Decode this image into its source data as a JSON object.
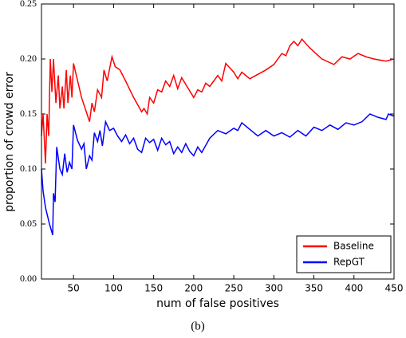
{
  "chart_data": {
    "type": "line",
    "xlabel": "num of false positives",
    "ylabel": "proportion of crowd error",
    "caption": "(b)",
    "xlim": [
      10,
      450
    ],
    "ylim": [
      0,
      0.25
    ],
    "xticks": [
      50,
      100,
      150,
      200,
      250,
      300,
      350,
      400,
      450
    ],
    "yticks": [
      {
        "value": 0,
        "label": "0.00"
      },
      {
        "value": 0.05,
        "label": "0.05"
      },
      {
        "value": 0.1,
        "label": "0.10"
      },
      {
        "value": 0.15,
        "label": "0.15"
      },
      {
        "value": 0.2,
        "label": "0.20"
      },
      {
        "value": 0.25,
        "label": "0.25"
      }
    ],
    "legend": "lower right",
    "series": [
      {
        "name": "Baseline",
        "color": "#ff0000",
        "x": [
          10,
          12,
          15,
          17,
          19,
          21,
          23,
          25,
          28,
          31,
          33,
          36,
          38,
          41,
          43,
          46,
          48,
          50,
          60,
          70,
          73,
          76,
          80,
          85,
          88,
          92,
          98,
          102,
          108,
          115,
          125,
          135,
          138,
          142,
          145,
          150,
          155,
          160,
          165,
          170,
          175,
          180,
          185,
          190,
          200,
          205,
          210,
          215,
          220,
          230,
          235,
          240,
          250,
          255,
          260,
          270,
          280,
          290,
          300,
          310,
          315,
          320,
          325,
          330,
          335,
          345,
          360,
          375,
          385,
          395,
          405,
          415,
          425,
          440,
          450
        ],
        "values": [
          0.13,
          0.15,
          0.105,
          0.15,
          0.13,
          0.2,
          0.17,
          0.2,
          0.16,
          0.185,
          0.155,
          0.175,
          0.155,
          0.19,
          0.16,
          0.185,
          0.165,
          0.196,
          0.165,
          0.143,
          0.16,
          0.152,
          0.172,
          0.165,
          0.19,
          0.18,
          0.202,
          0.193,
          0.19,
          0.18,
          0.165,
          0.152,
          0.155,
          0.15,
          0.165,
          0.16,
          0.172,
          0.17,
          0.18,
          0.175,
          0.185,
          0.173,
          0.183,
          0.177,
          0.165,
          0.172,
          0.17,
          0.178,
          0.175,
          0.185,
          0.18,
          0.196,
          0.188,
          0.182,
          0.188,
          0.182,
          0.186,
          0.19,
          0.195,
          0.205,
          0.203,
          0.212,
          0.216,
          0.212,
          0.218,
          0.21,
          0.2,
          0.195,
          0.202,
          0.2,
          0.205,
          0.202,
          0.2,
          0.198,
          0.2
        ]
      },
      {
        "name": "RepGT",
        "color": "#0000ff",
        "x": [
          10,
          12,
          15,
          20,
          24,
          25,
          27,
          29,
          33,
          36,
          39,
          42,
          45,
          48,
          50,
          55,
          60,
          63,
          66,
          70,
          73,
          76,
          80,
          83,
          86,
          90,
          95,
          100,
          105,
          110,
          115,
          120,
          125,
          130,
          135,
          140,
          145,
          150,
          155,
          160,
          165,
          170,
          175,
          180,
          185,
          190,
          195,
          200,
          205,
          210,
          220,
          230,
          240,
          250,
          255,
          260,
          270,
          280,
          290,
          300,
          310,
          320,
          330,
          340,
          350,
          360,
          370,
          380,
          390,
          400,
          410,
          420,
          430,
          440,
          443,
          450
        ],
        "values": [
          0.1,
          0.08,
          0.065,
          0.05,
          0.04,
          0.078,
          0.07,
          0.12,
          0.1,
          0.095,
          0.114,
          0.097,
          0.106,
          0.1,
          0.14,
          0.126,
          0.118,
          0.123,
          0.1,
          0.112,
          0.108,
          0.133,
          0.125,
          0.135,
          0.121,
          0.143,
          0.135,
          0.137,
          0.13,
          0.125,
          0.131,
          0.123,
          0.128,
          0.118,
          0.115,
          0.128,
          0.124,
          0.127,
          0.117,
          0.128,
          0.122,
          0.125,
          0.114,
          0.12,
          0.115,
          0.123,
          0.116,
          0.112,
          0.12,
          0.115,
          0.128,
          0.135,
          0.132,
          0.137,
          0.135,
          0.142,
          0.136,
          0.13,
          0.135,
          0.13,
          0.133,
          0.129,
          0.135,
          0.13,
          0.138,
          0.135,
          0.14,
          0.136,
          0.142,
          0.14,
          0.143,
          0.15,
          0.147,
          0.145,
          0.15,
          0.148
        ]
      }
    ]
  }
}
